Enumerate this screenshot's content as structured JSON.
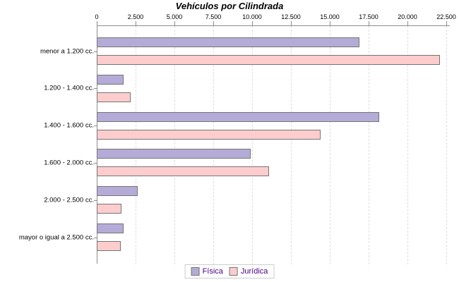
{
  "title": "Vehículos por Cilindrada",
  "colors": {
    "fisica_fill": "#b5abd7",
    "juridica_fill": "#fdcdcd",
    "bar_border": "#757575",
    "axis": "#8c8c8c",
    "gridline": "#dddddd",
    "legend_text": "#4b0082",
    "background": "#ffffff"
  },
  "chart_data": {
    "type": "bar",
    "orientation": "horizontal",
    "title": "Vehículos por Cilindrada",
    "xlabel": "",
    "ylabel": "",
    "categories": [
      "menor a 1.200 cc.",
      "1.200 - 1.400 cc.",
      "1.400 - 1.600 cc.",
      "1.600 - 2.000 cc.",
      "2.000 - 2.500 cc.",
      "mayor o igual a 2.500 cc."
    ],
    "series": [
      {
        "name": "Física",
        "color": "#b5abd7",
        "values": [
          16800,
          1650,
          18100,
          9800,
          2530,
          1630
        ]
      },
      {
        "name": "Jurídica",
        "color": "#fdcdcd",
        "values": [
          22000,
          2100,
          14300,
          11000,
          1480,
          1470
        ]
      }
    ],
    "x_axis": {
      "min": 0,
      "max": 22500,
      "tick_interval": 2500,
      "tick_labels": [
        "0",
        "2.500",
        "5.000",
        "7.500",
        "10.000",
        "12.500",
        "15.000",
        "17.500",
        "20.000",
        "22.500"
      ],
      "position": "top"
    },
    "grid": "vertical-dashed",
    "legend_position": "bottom"
  }
}
